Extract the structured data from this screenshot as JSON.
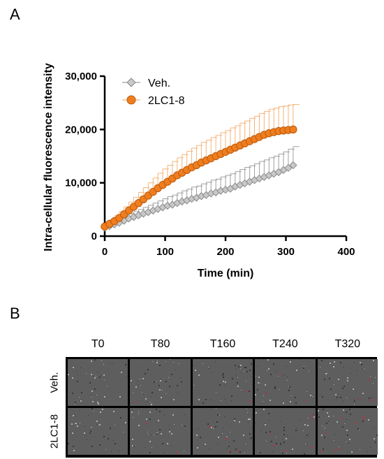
{
  "panels": {
    "a_label": "A",
    "b_label": "B"
  },
  "chart_data": {
    "type": "scatter",
    "xlabel": "Time (min)",
    "ylabel": "Intra-cellular fluorescence intensity",
    "xlim": [
      0,
      400
    ],
    "ylim": [
      0,
      30000
    ],
    "x_ticks": [
      0,
      100,
      200,
      300,
      400
    ],
    "x_tick_labels": [
      "0",
      "100",
      "200",
      "300",
      "400"
    ],
    "y_ticks": [
      0,
      10000,
      20000,
      30000
    ],
    "y_tick_labels": [
      "0",
      "10,000",
      "20,000",
      "30,000"
    ],
    "grid": false,
    "legend_position": "top-left",
    "x": [
      0,
      8,
      16,
      24,
      32,
      40,
      48,
      56,
      64,
      72,
      80,
      88,
      96,
      104,
      112,
      120,
      128,
      136,
      144,
      152,
      160,
      168,
      176,
      184,
      192,
      200,
      208,
      216,
      224,
      232,
      240,
      248,
      256,
      264,
      272,
      280,
      288,
      296,
      304,
      312
    ],
    "series": [
      {
        "name": "Veh.",
        "marker": "diamond",
        "color": "#c8c8c8",
        "edge_color": "#8a8a8a",
        "error_color": "#a0a0a0",
        "values": [
          1600,
          1900,
          2200,
          2500,
          2900,
          3300,
          3600,
          3900,
          4200,
          4500,
          4800,
          5100,
          5400,
          5700,
          5900,
          6200,
          6500,
          6700,
          7000,
          7200,
          7500,
          7700,
          8000,
          8200,
          8500,
          8700,
          8900,
          9300,
          9600,
          9900,
          10200,
          10500,
          10800,
          11100,
          11400,
          11700,
          12000,
          12400,
          12800,
          13300
        ],
        "errors": [
          400,
          500,
          600,
          700,
          800,
          900,
          1000,
          1100,
          1200,
          1300,
          1400,
          1500,
          1600,
          1700,
          1800,
          1900,
          2000,
          2100,
          2200,
          2200,
          2300,
          2400,
          2500,
          2500,
          2600,
          2700,
          2800,
          2800,
          2900,
          3000,
          3000,
          3100,
          3200,
          3200,
          3300,
          3300,
          3400,
          3400,
          3500,
          3500
        ]
      },
      {
        "name": "2LC1-8",
        "marker": "circle",
        "color": "#f07d1e",
        "edge_color": "#b85c10",
        "error_color": "#f5b47a",
        "values": [
          1800,
          2300,
          2800,
          3400,
          4100,
          4800,
          5500,
          6200,
          6900,
          7600,
          8300,
          9000,
          9600,
          10200,
          10800,
          11400,
          11900,
          12400,
          12900,
          13300,
          13800,
          14200,
          14600,
          15000,
          15400,
          15800,
          16200,
          16600,
          17000,
          17400,
          17800,
          18200,
          18600,
          19000,
          19300,
          19500,
          19700,
          19800,
          19900,
          20000
        ],
        "errors": [
          600,
          800,
          1000,
          1200,
          1400,
          1600,
          1800,
          2000,
          2200,
          2400,
          2600,
          2800,
          3000,
          3100,
          3200,
          3300,
          3400,
          3500,
          3600,
          3700,
          3800,
          3800,
          3900,
          3900,
          4000,
          4000,
          4100,
          4100,
          4200,
          4200,
          4300,
          4300,
          4400,
          4400,
          4500,
          4500,
          4600,
          4600,
          4700,
          4700
        ]
      }
    ]
  },
  "microscopy": {
    "columns": [
      "T0",
      "T80",
      "T160",
      "T240",
      "T320"
    ],
    "rows": [
      "Veh.",
      "2LC1-8"
    ],
    "red_spot_color": "#e0202a"
  }
}
